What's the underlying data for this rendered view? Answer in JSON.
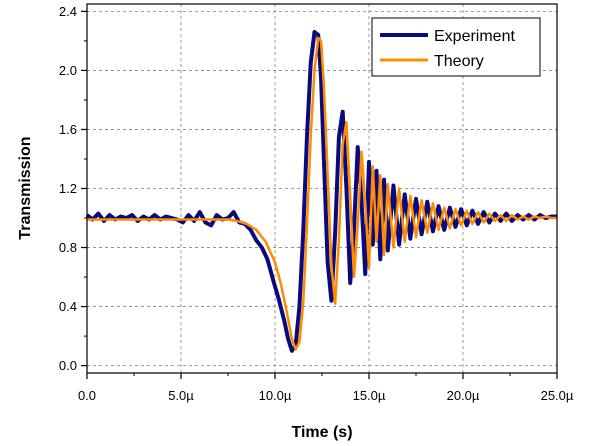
{
  "chart_data": {
    "type": "line",
    "title": "",
    "xlabel": "Time (s)",
    "ylabel": "Transmission",
    "xlim": [
      0,
      25
    ],
    "ylim": [
      -0.05,
      2.45
    ],
    "x_ticks": [
      0,
      5,
      10,
      15,
      20,
      25
    ],
    "x_tick_labels": [
      "0.0",
      "5.0µ",
      "10.0µ",
      "15.0µ",
      "20.0µ",
      "25.0µ"
    ],
    "y_ticks": [
      0.0,
      0.4,
      0.8,
      1.2,
      1.6,
      2.0,
      2.4
    ],
    "y_tick_labels": [
      "0.0",
      "0.4",
      "0.8",
      "1.2",
      "1.6",
      "2.0",
      "2.4"
    ],
    "grid": true,
    "legend_position": "top-right",
    "series": [
      {
        "name": "Experiment",
        "color": "#0a0a80",
        "x": [
          0,
          0.3,
          0.6,
          0.9,
          1.2,
          1.5,
          1.8,
          2.1,
          2.4,
          2.7,
          3.0,
          3.3,
          3.6,
          3.9,
          4.2,
          4.5,
          4.8,
          5.1,
          5.4,
          5.7,
          6.0,
          6.3,
          6.6,
          6.9,
          7.2,
          7.5,
          7.8,
          8.1,
          8.4,
          8.7,
          9.0,
          9.3,
          9.6,
          9.9,
          10.2,
          10.5,
          10.7,
          10.9,
          11.1,
          11.3,
          11.5,
          11.7,
          11.9,
          12.1,
          12.3,
          12.45,
          12.6,
          12.8,
          13.0,
          13.2,
          13.4,
          13.6,
          13.8,
          14.0,
          14.2,
          14.4,
          14.6,
          14.8,
          15.0,
          15.2,
          15.4,
          15.6,
          15.8,
          16.0,
          16.3,
          16.6,
          16.9,
          17.2,
          17.5,
          17.8,
          18.1,
          18.4,
          18.7,
          19.0,
          19.3,
          19.6,
          19.9,
          20.2,
          20.5,
          20.8,
          21.1,
          21.4,
          21.7,
          22.0,
          22.3,
          22.6,
          22.9,
          23.2,
          23.5,
          23.8,
          24.1,
          24.4,
          24.7,
          25.0
        ],
        "y": [
          1.02,
          0.99,
          1.03,
          0.98,
          1.02,
          0.99,
          1.01,
          1.0,
          1.02,
          0.98,
          1.01,
          0.99,
          1.02,
          0.99,
          1.01,
          1.0,
          0.99,
          0.97,
          1.02,
          0.98,
          1.04,
          0.97,
          0.95,
          1.02,
          0.99,
          1.0,
          1.04,
          0.97,
          0.96,
          0.92,
          0.85,
          0.8,
          0.72,
          0.58,
          0.45,
          0.3,
          0.18,
          0.1,
          0.14,
          0.4,
          0.9,
          1.55,
          2.05,
          2.26,
          2.24,
          1.95,
          1.4,
          0.7,
          0.44,
          0.9,
          1.55,
          1.72,
          1.2,
          0.56,
          0.92,
          1.48,
          1.12,
          0.62,
          1.38,
          0.82,
          1.32,
          0.72,
          1.26,
          0.78,
          1.22,
          0.82,
          1.16,
          0.86,
          1.13,
          0.89,
          1.11,
          0.91,
          1.08,
          0.92,
          1.07,
          0.94,
          1.06,
          0.95,
          1.05,
          0.96,
          1.04,
          0.97,
          1.03,
          0.98,
          1.03,
          0.98,
          1.02,
          0.99,
          1.02,
          0.99,
          1.02,
          1.0,
          1.01,
          1.01
        ]
      },
      {
        "name": "Theory",
        "color": "#ff8c00",
        "x": [
          0,
          1,
          2,
          3,
          4,
          5,
          6,
          7,
          7.5,
          8,
          8.5,
          9,
          9.5,
          10,
          10.3,
          10.6,
          10.9,
          11.1,
          11.3,
          11.5,
          11.7,
          11.9,
          12.1,
          12.3,
          12.45,
          12.6,
          12.8,
          13.0,
          13.2,
          13.4,
          13.6,
          13.8,
          14.0,
          14.2,
          14.4,
          14.6,
          14.8,
          15.0,
          15.2,
          15.4,
          15.6,
          15.8,
          16.0,
          16.3,
          16.6,
          16.9,
          17.2,
          17.5,
          17.8,
          18.1,
          18.4,
          18.7,
          19.0,
          19.3,
          19.6,
          19.9,
          20.2,
          20.5,
          20.8,
          21.1,
          21.4,
          21.7,
          22.0,
          22.3,
          22.6,
          22.9,
          23.2,
          23.5,
          23.8,
          24.1,
          24.4,
          24.7,
          25.0
        ],
        "y": [
          0.99,
          0.99,
          0.99,
          0.99,
          0.99,
          0.99,
          0.99,
          0.99,
          0.99,
          0.98,
          0.96,
          0.92,
          0.84,
          0.7,
          0.56,
          0.38,
          0.18,
          0.11,
          0.16,
          0.42,
          0.95,
          1.55,
          2.0,
          2.22,
          2.2,
          1.9,
          1.3,
          0.68,
          0.42,
          0.85,
          1.5,
          1.65,
          1.15,
          0.6,
          0.95,
          1.45,
          1.1,
          0.66,
          1.35,
          0.84,
          1.29,
          0.75,
          1.23,
          0.8,
          1.2,
          0.84,
          1.15,
          0.87,
          1.12,
          0.9,
          1.1,
          0.92,
          1.07,
          0.93,
          1.06,
          0.95,
          1.05,
          0.96,
          1.04,
          0.97,
          1.03,
          0.98,
          1.02,
          0.98,
          1.02,
          0.99,
          1.01,
          0.99,
          1.01,
          1.0,
          1.01,
          1.0,
          1.0
        ]
      }
    ]
  }
}
